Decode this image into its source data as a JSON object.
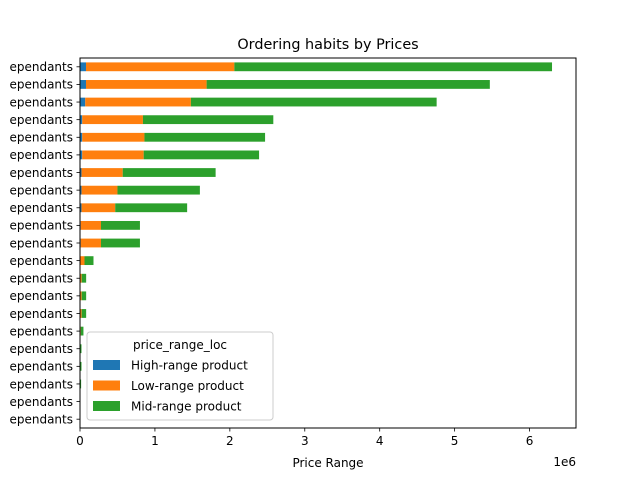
{
  "chart_data": {
    "type": "bar",
    "orientation": "horizontal",
    "stacked": true,
    "title": "Ordering habits by Prices",
    "xlabel": "Price Range",
    "ylabel": "",
    "x_offset_label": "1e6",
    "xlim": [
      0,
      6.62
    ],
    "xticks": [
      0,
      1,
      2,
      3,
      4,
      5,
      6
    ],
    "xtick_labels": [
      "0",
      "1",
      "2",
      "3",
      "4",
      "5",
      "6"
    ],
    "grid": false,
    "categories": [
      "ependants",
      "ependants",
      "ependants",
      "ependants",
      "ependants",
      "ependants",
      "ependants",
      "ependants",
      "ependants",
      "ependants",
      "ependants",
      "ependants",
      "ependants",
      "ependants",
      "ependants",
      "ependants",
      "ependants",
      "ependants",
      "ependants",
      "ependants",
      "ependants"
    ],
    "legend": {
      "title": "price_range_loc",
      "placement": "lower-left"
    },
    "series": [
      {
        "name": "High-range product",
        "color": "#1f77b4",
        "values": [
          0.08,
          0.08,
          0.07,
          0.03,
          0.03,
          0.03,
          0.02,
          0.02,
          0.02,
          0.01,
          0.01,
          0.005,
          0.002,
          0.002,
          0.002,
          0.001,
          0.001,
          0.001,
          0,
          0,
          0
        ]
      },
      {
        "name": "Low-range product",
        "color": "#ff7f0e",
        "values": [
          1.98,
          1.61,
          1.41,
          0.81,
          0.83,
          0.82,
          0.55,
          0.48,
          0.45,
          0.27,
          0.27,
          0.055,
          0.02,
          0.02,
          0.02,
          0.01,
          0.004,
          0.004,
          0.003,
          0.001,
          0.001
        ]
      },
      {
        "name": "Mid-range product",
        "color": "#2ca02c",
        "values": [
          4.24,
          3.78,
          3.28,
          1.74,
          1.61,
          1.54,
          1.24,
          1.1,
          0.96,
          0.52,
          0.52,
          0.12,
          0.06,
          0.06,
          0.06,
          0.035,
          0.015,
          0.015,
          0.012,
          0.005,
          0.004
        ]
      }
    ]
  }
}
